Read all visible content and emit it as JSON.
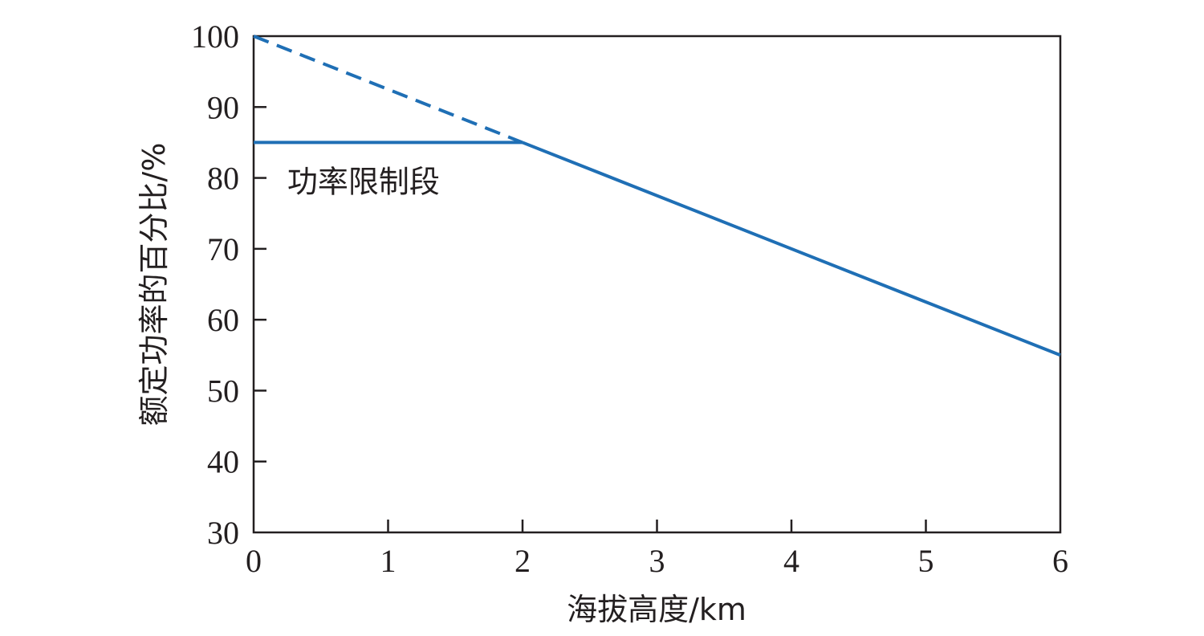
{
  "chart_data": {
    "type": "line",
    "xlabel": "海拔高度/km",
    "ylabel": "额定功率的百分比/%",
    "xlim": [
      0,
      6
    ],
    "ylim": [
      30,
      100
    ],
    "xticks": [
      0,
      1,
      2,
      3,
      4,
      5,
      6
    ],
    "yticks": [
      30,
      40,
      50,
      60,
      70,
      80,
      90,
      100
    ],
    "xtick_labels": [
      "0",
      "1",
      "2",
      "3",
      "4",
      "5",
      "6"
    ],
    "ytick_labels": [
      "30",
      "40",
      "50",
      "60",
      "70",
      "80",
      "90",
      "100"
    ],
    "grid": false,
    "line_color": "#1f6fb5",
    "axis_color": "#231f20",
    "annotations": [
      {
        "text": "功率限制段",
        "x": 0.25,
        "y": 80
      }
    ],
    "series": [
      {
        "style": "dashed",
        "x": [
          0,
          2
        ],
        "y": [
          100,
          85
        ]
      },
      {
        "style": "solid",
        "x": [
          0,
          2
        ],
        "y": [
          85,
          85
        ]
      },
      {
        "style": "solid",
        "x": [
          2,
          6
        ],
        "y": [
          85,
          55
        ]
      }
    ]
  }
}
